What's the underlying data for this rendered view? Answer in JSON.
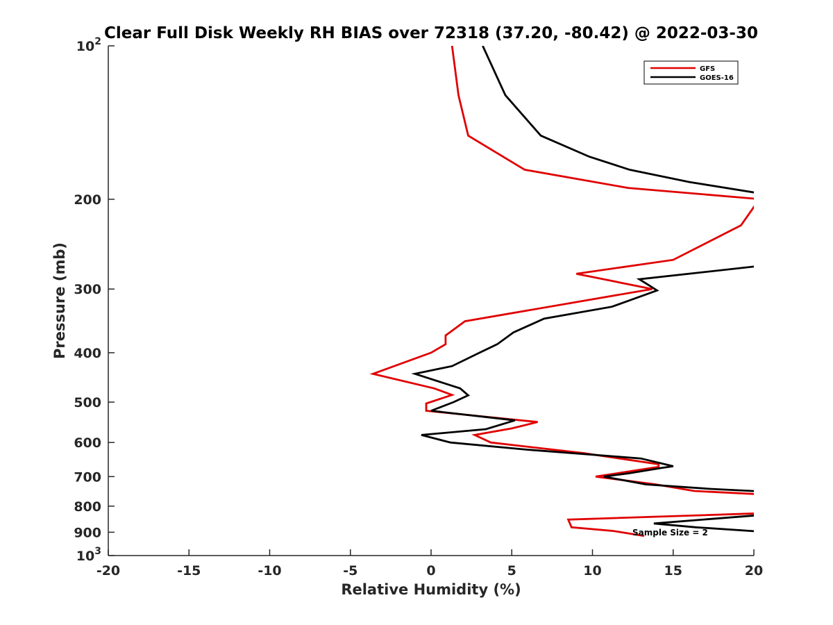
{
  "chart_data": {
    "type": "line",
    "title": "Clear Full Disk Weekly RH BIAS over 72318 (37.20, -80.42) @ 2022-03-30",
    "xlabel": "Relative Humidity (%)",
    "ylabel": "Pressure (mb)",
    "xlim": [
      -20,
      20
    ],
    "ylim": [
      100,
      1000
    ],
    "y_scale": "log",
    "y_reversed": true,
    "x_ticks": [
      -20,
      -15,
      -10,
      -5,
      0,
      5,
      10,
      15,
      20
    ],
    "y_ticks": [
      {
        "value": 100,
        "label": "10",
        "sup": "2"
      },
      {
        "value": 200,
        "label": "200",
        "sup": ""
      },
      {
        "value": 300,
        "label": "300",
        "sup": ""
      },
      {
        "value": 400,
        "label": "400",
        "sup": ""
      },
      {
        "value": 500,
        "label": "500",
        "sup": ""
      },
      {
        "value": 600,
        "label": "600",
        "sup": ""
      },
      {
        "value": 700,
        "label": "700",
        "sup": ""
      },
      {
        "value": 800,
        "label": "800",
        "sup": ""
      },
      {
        "value": 900,
        "label": "900",
        "sup": ""
      },
      {
        "value": 1000,
        "label": "10",
        "sup": "3"
      }
    ],
    "grid": false,
    "legend_position": "top-right",
    "annotation": "Sample Size = 2",
    "series": [
      {
        "name": "GFS",
        "color": "#e00000",
        "points": [
          [
            1.3,
            100
          ],
          [
            1.7,
            125
          ],
          [
            2.3,
            150
          ],
          [
            5.8,
            175
          ],
          [
            12.2,
            190
          ],
          [
            20.5,
            200
          ],
          [
            20.1,
            205
          ],
          [
            19.2,
            225
          ],
          [
            15.0,
            263
          ],
          [
            9.0,
            280
          ],
          [
            13.7,
            300
          ],
          [
            2.1,
            347
          ],
          [
            0.9,
            370
          ],
          [
            0.9,
            385
          ],
          [
            0.0,
            400
          ],
          [
            -3.6,
            440
          ],
          [
            0.2,
            470
          ],
          [
            1.3,
            484
          ],
          [
            -0.3,
            503
          ],
          [
            -0.3,
            520
          ],
          [
            6.6,
            547
          ],
          [
            5.0,
            563
          ],
          [
            2.7,
            580
          ],
          [
            3.7,
            600
          ],
          [
            9.5,
            630
          ],
          [
            14.1,
            662
          ],
          [
            14.1,
            670
          ],
          [
            10.2,
            700
          ],
          [
            13.9,
            725
          ],
          [
            16.3,
            747
          ],
          [
            21.0,
            760
          ],
          [
            null,
            null
          ],
          [
            21.0,
            825
          ],
          [
            8.5,
            850
          ],
          [
            8.7,
            880
          ],
          [
            11.3,
            895
          ],
          [
            13.2,
            915
          ]
        ]
      },
      {
        "name": "GOES-16",
        "color": "#000000",
        "points": [
          [
            3.2,
            100
          ],
          [
            4.6,
            125
          ],
          [
            6.8,
            150
          ],
          [
            9.8,
            165
          ],
          [
            12.3,
            175
          ],
          [
            16.0,
            185
          ],
          [
            20.5,
            195
          ],
          [
            null,
            null
          ],
          [
            20.5,
            270
          ],
          [
            12.9,
            287
          ],
          [
            13.5,
            295
          ],
          [
            14.0,
            302
          ],
          [
            11.2,
            325
          ],
          [
            7.0,
            343
          ],
          [
            5.1,
            365
          ],
          [
            4.1,
            385
          ],
          [
            3.0,
            400
          ],
          [
            1.3,
            425
          ],
          [
            -1.0,
            440
          ],
          [
            1.8,
            470
          ],
          [
            2.3,
            485
          ],
          [
            1.4,
            500
          ],
          [
            0.0,
            520
          ],
          [
            5.2,
            543
          ],
          [
            3.4,
            565
          ],
          [
            -0.6,
            580
          ],
          [
            1.2,
            600
          ],
          [
            6.0,
            620
          ],
          [
            13.0,
            645
          ],
          [
            15.0,
            668
          ],
          [
            14.3,
            673
          ],
          [
            12.2,
            690
          ],
          [
            10.7,
            700
          ],
          [
            13.3,
            725
          ],
          [
            17.3,
            740
          ],
          [
            21.0,
            750
          ],
          [
            null,
            null
          ],
          [
            21.0,
            830
          ],
          [
            13.8,
            865
          ],
          [
            16.4,
            880
          ],
          [
            21.0,
            900
          ]
        ]
      }
    ]
  }
}
